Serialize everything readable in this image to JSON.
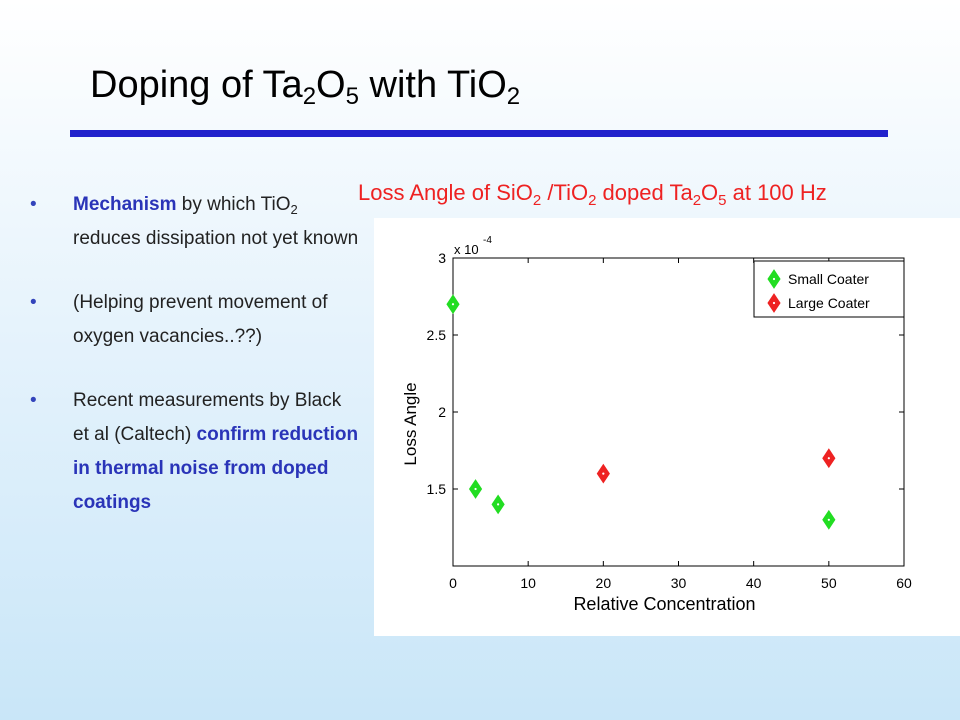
{
  "slide": {
    "title_parts": [
      "Doping of Ta",
      "2",
      "O",
      "5",
      " with TiO",
      "2"
    ]
  },
  "bullets": [
    {
      "segments": [
        {
          "text": "Mechanism",
          "style": "blue"
        },
        {
          "text": " by which TiO",
          "style": "plain"
        },
        {
          "text": "2",
          "style": "sub"
        },
        {
          "text": " reduces dissipation not yet known",
          "style": "plain"
        }
      ]
    },
    {
      "segments": [
        {
          "text": "(Helping prevent movement of oxygen vacancies..??)",
          "style": "plain"
        }
      ]
    },
    {
      "segments": [
        {
          "text": "Recent measurements by Black et al (Caltech) ",
          "style": "plain"
        },
        {
          "text": "confirm reduction in thermal noise from doped coatings",
          "style": "blue"
        }
      ]
    }
  ],
  "chart_title_parts": [
    {
      "text": "Loss Angle of SiO",
      "sub": false
    },
    {
      "text": "2",
      "sub": true
    },
    {
      "text": " /TiO",
      "sub": false
    },
    {
      "text": "2",
      "sub": true
    },
    {
      "text": " doped Ta",
      "sub": false
    },
    {
      "text": "2",
      "sub": true
    },
    {
      "text": "O",
      "sub": false
    },
    {
      "text": "5",
      "sub": true
    },
    {
      "text": " at 100 Hz",
      "sub": false
    }
  ],
  "chart_data": {
    "type": "scatter",
    "xlabel": "Relative Concentration",
    "ylabel": "Loss Angle",
    "y_multiplier": "x 10",
    "y_multiplier_exponent": "-4",
    "xlim": [
      0,
      60
    ],
    "ylim": [
      1.0,
      3.0
    ],
    "xticks": [
      0,
      10,
      20,
      30,
      40,
      50,
      60
    ],
    "yticks": [
      1.5,
      2,
      2.5,
      3
    ],
    "ytick_labels": [
      "1.5",
      "2",
      "2.5",
      "3"
    ],
    "grid": false,
    "legend_position": "top-right",
    "marker": "diamond",
    "series": [
      {
        "name": "Small Coater",
        "color": "#22dd22",
        "points": [
          [
            0,
            2.7
          ],
          [
            3,
            1.5
          ],
          [
            6,
            1.4
          ],
          [
            50,
            1.3
          ]
        ]
      },
      {
        "name": "Large Coater",
        "color": "#ee2222",
        "points": [
          [
            20,
            1.6
          ],
          [
            50,
            1.7
          ]
        ]
      }
    ]
  }
}
